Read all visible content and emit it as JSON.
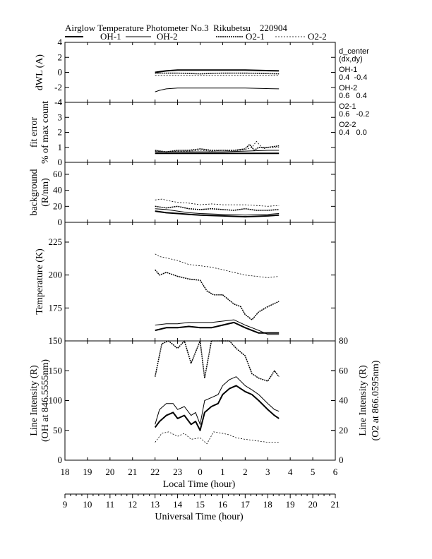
{
  "title": "Airglow Temperature Photometer No.3  Rikubetsu    220904",
  "legend": [
    {
      "name": "OH-1",
      "style": "thick"
    },
    {
      "name": "OH-2",
      "style": "thin"
    },
    {
      "name": "O2-1",
      "style": "dense-dash"
    },
    {
      "name": "O2-2",
      "style": "thin-dash"
    }
  ],
  "side_notes": [
    "d_center",
    "(dx,dy)",
    "OH-1",
    "0.4  -0.4",
    "OH-2",
    "0.6   0.4",
    "O2-1",
    "0.6   -0.2",
    "O2-2",
    "0.4   0.0"
  ],
  "colors": {
    "lines": "#000000",
    "background": "#ffffff"
  },
  "chart_data": [
    {
      "type": "line",
      "ylabel": "dWL (A)",
      "ylim": [
        -4,
        4
      ],
      "yticks": [
        "-4",
        "-2",
        "0",
        "2",
        "4"
      ],
      "series": [
        {
          "name": "OH-1",
          "x": [
            13.0,
            13.5,
            14.0,
            15.0,
            16.0,
            17.0,
            18.5
          ],
          "y": [
            0.0,
            0.2,
            0.3,
            0.3,
            0.3,
            0.3,
            0.2
          ]
        },
        {
          "name": "OH-2",
          "x": [
            13.0,
            13.2,
            13.5,
            14.0,
            15.0,
            16.0,
            17.0,
            18.5
          ],
          "y": [
            -2.6,
            -2.4,
            -2.2,
            -2.1,
            -2.1,
            -2.1,
            -2.1,
            -2.2
          ]
        },
        {
          "name": "O2-1",
          "x": [
            13.0,
            14.0,
            15.0,
            16.0,
            17.0,
            18.5
          ],
          "y": [
            -0.1,
            -0.1,
            -0.2,
            -0.1,
            -0.1,
            -0.2
          ]
        },
        {
          "name": "O2-2",
          "x": [
            13.0,
            14.0,
            15.0,
            16.0,
            17.0,
            18.5
          ],
          "y": [
            -0.4,
            -0.4,
            -0.4,
            -0.4,
            -0.4,
            -0.4
          ]
        }
      ]
    },
    {
      "type": "line",
      "ylabel": "fit error",
      "ylabel2": "% of max count",
      "ylim": [
        0,
        4
      ],
      "yticks": [
        "0",
        "1",
        "2",
        "3",
        "4"
      ],
      "series": [
        {
          "name": "OH-1",
          "x": [
            13.0,
            14.0,
            15.0,
            16.0,
            17.0,
            18.0,
            18.5
          ],
          "y": [
            0.6,
            0.6,
            0.6,
            0.6,
            0.6,
            0.6,
            0.6
          ]
        },
        {
          "name": "OH-2",
          "x": [
            13.0,
            14.0,
            15.0,
            16.0,
            17.0,
            18.0,
            18.5
          ],
          "y": [
            0.7,
            0.7,
            0.7,
            0.7,
            0.75,
            0.8,
            0.8
          ]
        },
        {
          "name": "O2-1",
          "x": [
            13.0,
            13.5,
            14.0,
            14.5,
            15.0,
            15.5,
            16.0,
            16.5,
            17.0,
            17.2,
            17.4,
            17.6,
            18.0,
            18.5
          ],
          "y": [
            0.8,
            0.7,
            0.8,
            0.8,
            0.9,
            0.8,
            0.8,
            0.8,
            0.9,
            1.2,
            0.8,
            1.0,
            1.0,
            1.1
          ]
        },
        {
          "name": "O2-2",
          "x": [
            13.0,
            13.5,
            14.0,
            14.5,
            15.0,
            15.5,
            16.0,
            16.5,
            17.0,
            17.3,
            17.5,
            17.8,
            18.0,
            18.5
          ],
          "y": [
            0.75,
            0.7,
            0.75,
            0.75,
            0.8,
            0.75,
            0.8,
            0.75,
            0.85,
            1.0,
            1.4,
            0.9,
            1.0,
            1.0
          ]
        }
      ]
    },
    {
      "type": "line",
      "ylabel": "background",
      "ylabel2": "(R/nm)",
      "ylim": [
        0,
        75
      ],
      "yticks": [
        "0",
        "20",
        "40",
        "60"
      ],
      "ytick_values": [
        0,
        20,
        40,
        60
      ],
      "series": [
        {
          "name": "OH-1",
          "x": [
            13.0,
            13.5,
            14.0,
            14.5,
            15.0,
            16.0,
            17.0,
            18.0,
            18.5
          ],
          "y": [
            14,
            12,
            11,
            10,
            9,
            8,
            7,
            8,
            9
          ]
        },
        {
          "name": "OH-2",
          "x": [
            13.0,
            13.5,
            14.0,
            14.5,
            15.0,
            16.0,
            17.0,
            18.0,
            18.5
          ],
          "y": [
            17,
            16,
            14,
            12,
            11,
            10,
            9,
            10,
            11
          ]
        },
        {
          "name": "O2-1",
          "x": [
            13.0,
            13.5,
            14.0,
            14.5,
            15.0,
            15.5,
            16.0,
            16.5,
            17.0,
            17.5,
            18.0,
            18.5
          ],
          "y": [
            20,
            18,
            20,
            17,
            16,
            17,
            16,
            15,
            17,
            15,
            15,
            16
          ]
        },
        {
          "name": "O2-2",
          "x": [
            13.0,
            13.3,
            13.6,
            14.0,
            14.5,
            15.0,
            15.5,
            16.0,
            16.5,
            17.0,
            17.5,
            18.0,
            18.5
          ],
          "y": [
            28,
            29,
            27,
            25,
            24,
            22,
            23,
            22,
            22,
            22,
            21,
            20,
            21
          ]
        }
      ]
    },
    {
      "type": "line",
      "ylabel": "Temperature (K)",
      "ylim": [
        150,
        240
      ],
      "yticks": [
        "150",
        "175",
        "200",
        "225"
      ],
      "ytick_values": [
        150,
        175,
        200,
        225
      ],
      "series": [
        {
          "name": "OH-1",
          "x": [
            13.0,
            13.5,
            14.0,
            14.5,
            15.0,
            15.5,
            16.0,
            16.5,
            17.0,
            17.3,
            17.6,
            18.0,
            18.5
          ],
          "y": [
            158,
            160,
            160,
            161,
            160,
            160,
            162,
            164,
            160,
            158,
            156,
            156,
            156
          ]
        },
        {
          "name": "OH-2",
          "x": [
            13.0,
            13.5,
            14.0,
            14.5,
            15.0,
            15.5,
            16.0,
            16.5,
            17.0,
            17.3,
            17.6,
            18.0,
            18.5
          ],
          "y": [
            162,
            163,
            163,
            164,
            164,
            164,
            165,
            166,
            162,
            160,
            158,
            155,
            155
          ]
        },
        {
          "name": "O2-1",
          "x": [
            13.0,
            13.2,
            13.5,
            14.0,
            14.5,
            15.0,
            15.3,
            15.6,
            16.0,
            16.5,
            16.8,
            17.0,
            17.3,
            17.6,
            18.0,
            18.5
          ],
          "y": [
            204,
            200,
            202,
            199,
            197,
            196,
            188,
            185,
            185,
            178,
            176,
            170,
            166,
            172,
            176,
            180
          ]
        },
        {
          "name": "O2-2",
          "x": [
            13.0,
            13.2,
            13.5,
            14.0,
            14.5,
            15.0,
            15.5,
            16.0,
            16.5,
            17.0,
            17.5,
            18.0,
            18.5
          ],
          "y": [
            216,
            214,
            213,
            211,
            208,
            207,
            206,
            204,
            202,
            200,
            199,
            198,
            199
          ]
        }
      ]
    },
    {
      "type": "line",
      "ylabel": "Line Intensity (R)",
      "ylabel2": "(OH at 846.5555nm)",
      "ylabel_right": "Line Intensity (R)",
      "ylabel_right2": "(O2 at 866.0595nm)",
      "ylim": [
        0,
        200
      ],
      "yticks": [
        "0",
        "50",
        "100",
        "150"
      ],
      "ytick_values": [
        0,
        50,
        100,
        150
      ],
      "ylim_right": [
        0,
        80
      ],
      "yticks_right": [
        "0",
        "20",
        "40",
        "60",
        "80"
      ],
      "ytick_right_values": [
        0,
        20,
        40,
        60,
        80
      ],
      "series": [
        {
          "name": "OH-1",
          "axis": "left",
          "x": [
            13.0,
            13.2,
            13.5,
            13.8,
            14.0,
            14.3,
            14.6,
            14.8,
            15.0,
            15.2,
            15.5,
            15.8,
            16.0,
            16.3,
            16.6,
            17.0,
            17.3,
            17.6,
            18.0,
            18.3,
            18.5
          ],
          "y": [
            55,
            65,
            75,
            80,
            70,
            75,
            60,
            65,
            50,
            80,
            90,
            95,
            110,
            120,
            125,
            115,
            110,
            100,
            85,
            75,
            70
          ]
        },
        {
          "name": "OH-2",
          "axis": "left",
          "x": [
            13.0,
            13.2,
            13.5,
            13.8,
            14.0,
            14.3,
            14.6,
            14.8,
            15.0,
            15.2,
            15.5,
            15.8,
            16.0,
            16.3,
            16.6,
            17.0,
            17.3,
            17.6,
            18.0,
            18.3,
            18.5
          ],
          "y": [
            60,
            85,
            95,
            95,
            85,
            90,
            75,
            80,
            60,
            100,
            105,
            110,
            125,
            135,
            140,
            125,
            118,
            110,
            95,
            85,
            82
          ]
        },
        {
          "name": "O2-1",
          "axis": "right",
          "x": [
            13.0,
            13.3,
            13.6,
            14.0,
            14.3,
            14.6,
            15.0,
            15.2,
            15.5,
            15.8,
            16.0,
            16.3,
            16.6,
            17.0,
            17.3,
            17.6,
            18.0,
            18.3,
            18.5
          ],
          "y": [
            56,
            78,
            80,
            75,
            80,
            65,
            80,
            55,
            80,
            80,
            80,
            80,
            75,
            70,
            58,
            55,
            53,
            60,
            56
          ]
        },
        {
          "name": "O2-2",
          "axis": "right",
          "x": [
            13.0,
            13.3,
            13.6,
            14.0,
            14.3,
            14.6,
            15.0,
            15.3,
            15.6,
            16.0,
            16.3,
            16.6,
            17.0,
            17.5,
            18.0,
            18.5
          ],
          "y": [
            12,
            18,
            19,
            16,
            18,
            14,
            15,
            11,
            19,
            18,
            17,
            15,
            14,
            13,
            12,
            12
          ]
        }
      ]
    }
  ],
  "x_axis": {
    "range": [
      9,
      21
    ],
    "local_label": "Local Time (hour)",
    "local_ticks": [
      "18",
      "19",
      "20",
      "21",
      "22",
      "23",
      "0",
      "1",
      "2",
      "3",
      "4",
      "5",
      "6"
    ],
    "ut_label": "Universal Time (hour)",
    "ut_ticks": [
      "9",
      "10",
      "11",
      "12",
      "13",
      "14",
      "15",
      "16",
      "17",
      "18",
      "19",
      "20",
      "21"
    ]
  }
}
